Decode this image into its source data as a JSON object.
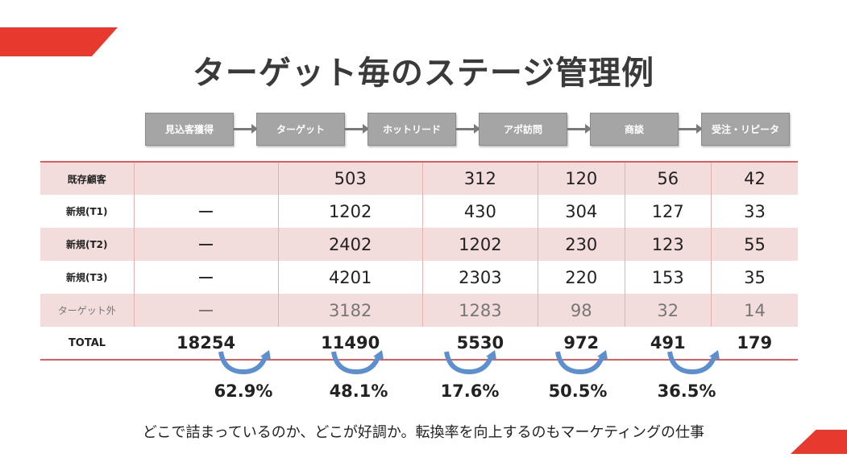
{
  "title": "ターゲット毎のステージ管理例",
  "stages": [
    "見込客獲得",
    "ターゲット",
    "ホットリード",
    "アポ訪問",
    "商談",
    "受注・リピータ"
  ],
  "rows": [
    {
      "label": "既存顧客",
      "values": [
        "",
        "503",
        "312",
        "120",
        "56",
        "42"
      ]
    },
    {
      "label": "新規(T1)",
      "values": [
        "ー",
        "1202",
        "430",
        "304",
        "127",
        "33"
      ]
    },
    {
      "label": "新規(T2)",
      "values": [
        "ー",
        "2402",
        "1202",
        "230",
        "123",
        "55"
      ]
    },
    {
      "label": "新規(T3)",
      "values": [
        "ー",
        "4201",
        "2303",
        "220",
        "153",
        "35"
      ]
    },
    {
      "label": "ターゲット外",
      "values": [
        "ー",
        "3182",
        "1283",
        "98",
        "32",
        "14"
      ]
    },
    {
      "label": "TOTAL",
      "values": [
        "18254",
        "11490",
        "5530",
        "972",
        "491",
        "179"
      ]
    }
  ],
  "rates": [
    "62.9%",
    "48.1%",
    "17.6%",
    "50.5%",
    "36.5%"
  ],
  "footer": "どこで詰まっているのか、どこが好調か。転換率を向上するのもマーケティングの仕事",
  "colors": {
    "accent": "#e8392f",
    "row_pink": "#f2dcdc",
    "stage_box": "#a5a5a5",
    "curve_arrow": "#5b8fd0"
  }
}
